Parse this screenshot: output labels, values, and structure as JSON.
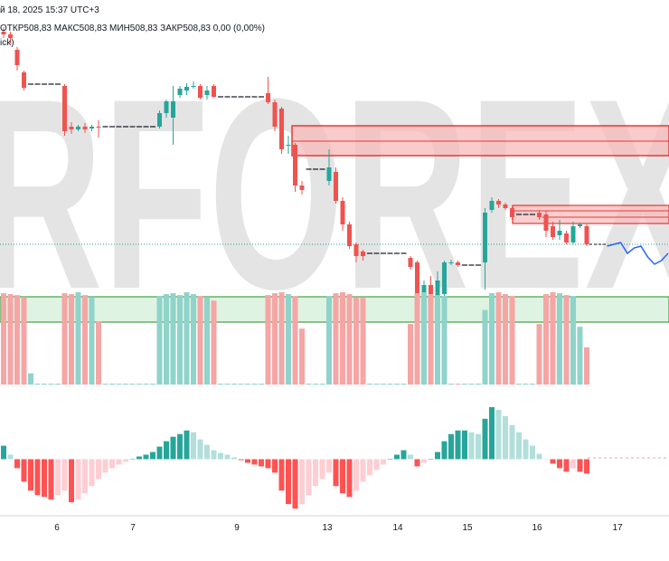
{
  "chart_data": {
    "type": "candlestick",
    "header": {
      "date": "й 18, 2025 15:37 UTC+3",
      "ohlc": "ОТКР508,83 МАКС508,83 МИН508,83 ЗАКР508,83 0,00 (0,00%)",
      "indicator": "ick)"
    },
    "watermark": "RFOREX",
    "x_ticks": [
      "6",
      "7",
      "9",
      "13",
      "14",
      "15",
      "16",
      "17"
    ],
    "ylim": [
      -10,
      330
    ],
    "up_color": "#26a69a",
    "down_color": "#ef5350",
    "flat_color": "#131722",
    "open": [
      305,
      302,
      285,
      260,
      247,
      247,
      247,
      247,
      247,
      245,
      200,
      197,
      200,
      198,
      200,
      200,
      200,
      200,
      200,
      200,
      200,
      200,
      200,
      200,
      215,
      210,
      235,
      240,
      244,
      245,
      235,
      245,
      233,
      233,
      233,
      233,
      233,
      233,
      233,
      237,
      227,
      220,
      180,
      180,
      135,
      153,
      153,
      153,
      140,
      150,
      118,
      92,
      70,
      62,
      60,
      60,
      60,
      60,
      60,
      60,
      55,
      50,
      0,
      25,
      10,
      15,
      50,
      50,
      47,
      47,
      47,
      50,
      108,
      118,
      114,
      110,
      103,
      103,
      103,
      105,
      103,
      90,
      80,
      82,
      72,
      90,
      90
    ],
    "high": [
      310,
      305,
      288,
      262,
      247,
      247,
      247,
      247,
      247,
      247,
      205,
      202,
      204,
      202,
      207,
      200,
      200,
      200,
      200,
      200,
      200,
      200,
      200,
      218,
      230,
      245,
      245,
      248,
      250,
      247,
      245,
      247,
      233,
      233,
      233,
      233,
      233,
      233,
      233,
      255,
      230,
      222,
      190,
      182,
      140,
      153,
      153,
      153,
      175,
      155,
      122,
      95,
      72,
      64,
      60,
      60,
      60,
      60,
      60,
      60,
      57,
      52,
      30,
      35,
      40,
      52,
      53,
      52,
      47,
      47,
      47,
      110,
      122,
      120,
      116,
      112,
      103,
      103,
      103,
      108,
      107,
      95,
      97,
      85,
      95,
      94,
      92
    ],
    "low": [
      298,
      292,
      262,
      240,
      247,
      247,
      247,
      247,
      247,
      190,
      192,
      195,
      193,
      195,
      188,
      200,
      200,
      200,
      200,
      200,
      200,
      200,
      200,
      198,
      210,
      180,
      232,
      235,
      242,
      230,
      230,
      232,
      233,
      233,
      233,
      233,
      233,
      233,
      233,
      225,
      195,
      170,
      170,
      128,
      125,
      153,
      153,
      153,
      135,
      115,
      85,
      65,
      50,
      52,
      60,
      60,
      60,
      60,
      60,
      60,
      42,
      -5,
      -3,
      10,
      -5,
      10,
      47,
      45,
      47,
      47,
      47,
      20,
      105,
      110,
      108,
      97,
      103,
      103,
      103,
      97,
      78,
      75,
      75,
      70,
      70,
      88,
      68
    ],
    "close": [
      302,
      298,
      268,
      243,
      247,
      247,
      247,
      247,
      247,
      195,
      197,
      200,
      197,
      200,
      199,
      200,
      200,
      200,
      200,
      200,
      200,
      200,
      200,
      215,
      228,
      228,
      242,
      244,
      245,
      232,
      240,
      233,
      233,
      233,
      233,
      233,
      233,
      233,
      233,
      227,
      200,
      175,
      180,
      135,
      130,
      153,
      153,
      153,
      155,
      118,
      92,
      68,
      57,
      57,
      60,
      60,
      60,
      60,
      60,
      60,
      45,
      0,
      25,
      15,
      30,
      50,
      50,
      47,
      47,
      47,
      47,
      105,
      118,
      114,
      110,
      100,
      103,
      103,
      103,
      100,
      85,
      78,
      85,
      72,
      90,
      92,
      70
    ],
    "volume": {
      "ylim": [
        0,
        100
      ],
      "up_color": "#8fd3ca",
      "down_color": "#f6a5a5",
      "values": [
        98,
        97,
        96,
        94,
        12,
        1,
        1,
        1,
        1,
        98,
        97,
        99,
        96,
        94,
        68,
        1,
        1,
        1,
        1,
        1,
        1,
        1,
        1,
        95,
        97,
        98,
        96,
        99,
        97,
        95,
        94,
        90,
        1,
        1,
        1,
        1,
        1,
        1,
        1,
        96,
        98,
        99,
        97,
        95,
        60,
        1,
        1,
        1,
        95,
        98,
        99,
        97,
        94,
        93,
        1,
        1,
        1,
        1,
        1,
        1,
        65,
        98,
        99,
        97,
        96,
        95,
        1,
        1,
        1,
        1,
        1,
        80,
        98,
        99,
        97,
        95,
        1,
        1,
        1,
        65,
        97,
        99,
        98,
        96,
        95,
        62,
        40
      ]
    },
    "oscillator": {
      "ylim": [
        -60,
        65
      ],
      "colors": [
        "#26a69a",
        "#b2dfdb",
        "#ff5252",
        "#ffcdd2"
      ],
      "values": [
        15,
        5,
        -10,
        -25,
        -35,
        -40,
        -42,
        -45,
        -40,
        -35,
        -48,
        -45,
        -38,
        -30,
        -22,
        -15,
        -10,
        -6,
        -3,
        0,
        3,
        5,
        8,
        14,
        20,
        25,
        28,
        32,
        30,
        22,
        16,
        10,
        7,
        5,
        2,
        -1,
        -4,
        -6,
        -8,
        -10,
        -15,
        -35,
        -50,
        -55,
        -50,
        -40,
        -30,
        -22,
        -15,
        -30,
        -38,
        -42,
        -35,
        -25,
        -18,
        -12,
        -6,
        0,
        5,
        10,
        5,
        -8,
        -4,
        0,
        8,
        20,
        28,
        32,
        32,
        30,
        28,
        45,
        58,
        55,
        48,
        38,
        30,
        22,
        15,
        6,
        0,
        -5,
        -10,
        -14,
        -10,
        -14,
        -16
      ]
    },
    "forecast": {
      "color": "#2962ff",
      "values": [
        68,
        70,
        72,
        60,
        66,
        68,
        56,
        48,
        52,
        60
      ]
    }
  }
}
